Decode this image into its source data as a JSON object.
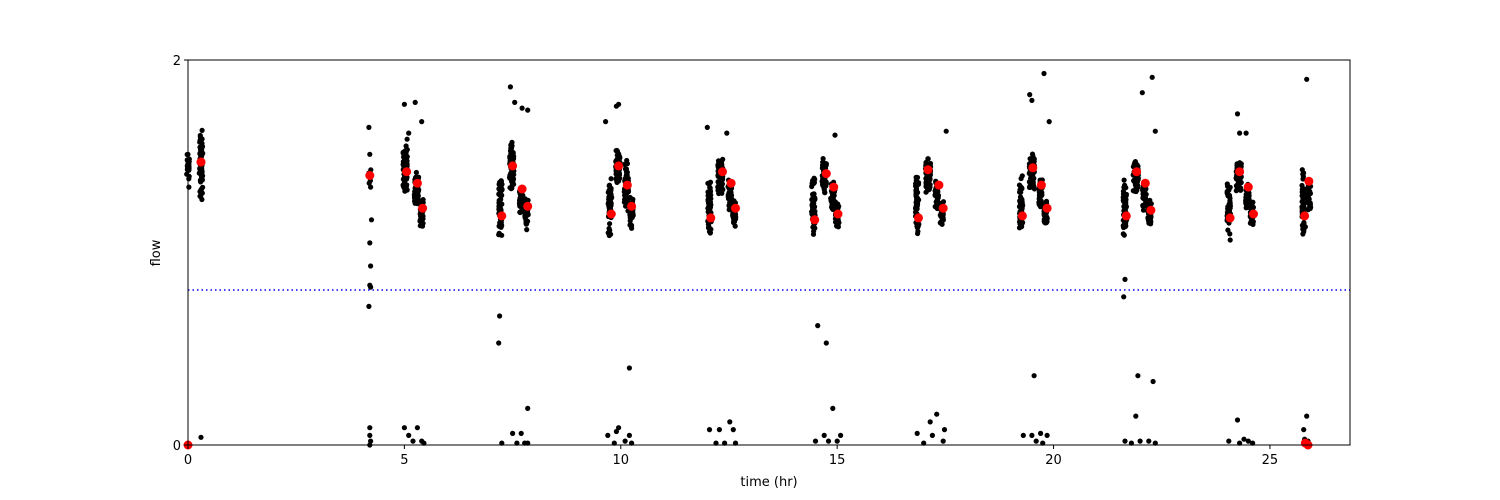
{
  "chart_data": {
    "type": "scatter",
    "xlabel": "time (hr)",
    "ylabel": "flow",
    "xlim": [
      0,
      26.85
    ],
    "ylim": [
      0,
      2
    ],
    "xticks": [
      "0",
      "5",
      "10",
      "15",
      "20",
      "25"
    ],
    "xtick_values": [
      0,
      5,
      10,
      15,
      20,
      25
    ],
    "yticks": [
      "0",
      "2"
    ],
    "ytick_values": [
      0,
      2
    ],
    "grid": false,
    "threshold_line": {
      "y": 0.805,
      "style": "dotted",
      "color": "#0000ff"
    },
    "colors": {
      "raw": "#000000",
      "summary": "#ff0000"
    },
    "raw_clusters": [
      {
        "x": 0.0,
        "width": 0.06,
        "ymin": 1.35,
        "ymax": 1.55,
        "count": 22
      },
      {
        "x": 0.3,
        "width": 0.08,
        "ymin": 1.24,
        "ymax": 1.68,
        "count": 70
      },
      {
        "x": 4.2,
        "width": 0.05,
        "ymin": 1.35,
        "ymax": 1.45,
        "count": 14
      },
      {
        "x": 5.02,
        "width": 0.1,
        "ymin": 1.3,
        "ymax": 1.6,
        "count": 60
      },
      {
        "x": 5.28,
        "width": 0.1,
        "ymin": 1.22,
        "ymax": 1.42,
        "count": 50
      },
      {
        "x": 5.4,
        "width": 0.08,
        "ymin": 1.12,
        "ymax": 1.3,
        "count": 40
      },
      {
        "x": 7.22,
        "width": 0.08,
        "ymin": 1.08,
        "ymax": 1.4,
        "count": 55
      },
      {
        "x": 7.48,
        "width": 0.1,
        "ymin": 1.3,
        "ymax": 1.6,
        "count": 70
      },
      {
        "x": 7.7,
        "width": 0.08,
        "ymin": 1.2,
        "ymax": 1.35,
        "count": 40
      },
      {
        "x": 7.82,
        "width": 0.08,
        "ymin": 1.1,
        "ymax": 1.3,
        "count": 35
      },
      {
        "x": 9.75,
        "width": 0.08,
        "ymin": 1.07,
        "ymax": 1.4,
        "count": 55
      },
      {
        "x": 9.93,
        "width": 0.1,
        "ymin": 1.35,
        "ymax": 1.55,
        "count": 55
      },
      {
        "x": 10.13,
        "width": 0.1,
        "ymin": 1.2,
        "ymax": 1.5,
        "count": 50
      },
      {
        "x": 10.25,
        "width": 0.08,
        "ymin": 1.12,
        "ymax": 1.3,
        "count": 35
      },
      {
        "x": 12.05,
        "width": 0.08,
        "ymin": 1.07,
        "ymax": 1.4,
        "count": 55
      },
      {
        "x": 12.3,
        "width": 0.12,
        "ymin": 1.3,
        "ymax": 1.5,
        "count": 70
      },
      {
        "x": 12.52,
        "width": 0.08,
        "ymin": 1.2,
        "ymax": 1.38,
        "count": 40
      },
      {
        "x": 12.62,
        "width": 0.08,
        "ymin": 1.12,
        "ymax": 1.28,
        "count": 35
      },
      {
        "x": 14.45,
        "width": 0.08,
        "ymin": 1.06,
        "ymax": 1.4,
        "count": 55
      },
      {
        "x": 14.7,
        "width": 0.1,
        "ymin": 1.3,
        "ymax": 1.5,
        "count": 60
      },
      {
        "x": 14.9,
        "width": 0.1,
        "ymin": 1.2,
        "ymax": 1.38,
        "count": 40
      },
      {
        "x": 15.0,
        "width": 0.08,
        "ymin": 1.12,
        "ymax": 1.28,
        "count": 35
      },
      {
        "x": 16.85,
        "width": 0.08,
        "ymin": 1.06,
        "ymax": 1.42,
        "count": 55
      },
      {
        "x": 17.1,
        "width": 0.12,
        "ymin": 1.3,
        "ymax": 1.5,
        "count": 65
      },
      {
        "x": 17.3,
        "width": 0.08,
        "ymin": 1.22,
        "ymax": 1.38,
        "count": 40
      },
      {
        "x": 17.42,
        "width": 0.08,
        "ymin": 1.12,
        "ymax": 1.28,
        "count": 35
      },
      {
        "x": 19.25,
        "width": 0.08,
        "ymin": 1.08,
        "ymax": 1.42,
        "count": 55
      },
      {
        "x": 19.5,
        "width": 0.12,
        "ymin": 1.32,
        "ymax": 1.52,
        "count": 65
      },
      {
        "x": 19.7,
        "width": 0.08,
        "ymin": 1.22,
        "ymax": 1.4,
        "count": 40
      },
      {
        "x": 19.82,
        "width": 0.08,
        "ymin": 1.12,
        "ymax": 1.28,
        "count": 35
      },
      {
        "x": 21.65,
        "width": 0.08,
        "ymin": 1.06,
        "ymax": 1.4,
        "count": 55
      },
      {
        "x": 21.9,
        "width": 0.12,
        "ymin": 1.3,
        "ymax": 1.5,
        "count": 65
      },
      {
        "x": 22.1,
        "width": 0.08,
        "ymin": 1.2,
        "ymax": 1.38,
        "count": 40
      },
      {
        "x": 22.22,
        "width": 0.08,
        "ymin": 1.12,
        "ymax": 1.28,
        "count": 35
      },
      {
        "x": 24.05,
        "width": 0.08,
        "ymin": 1.05,
        "ymax": 1.4,
        "count": 55
      },
      {
        "x": 24.28,
        "width": 0.12,
        "ymin": 1.3,
        "ymax": 1.5,
        "count": 65
      },
      {
        "x": 24.48,
        "width": 0.08,
        "ymin": 1.2,
        "ymax": 1.38,
        "count": 40
      },
      {
        "x": 24.58,
        "width": 0.08,
        "ymin": 1.12,
        "ymax": 1.28,
        "count": 30
      },
      {
        "x": 25.78,
        "width": 0.08,
        "ymin": 1.06,
        "ymax": 1.45,
        "count": 50
      },
      {
        "x": 25.9,
        "width": 0.08,
        "ymin": 1.2,
        "ymax": 1.42,
        "count": 30
      }
    ],
    "raw_points": [
      [
        0.0,
        1.51
      ],
      [
        0.02,
        1.34
      ],
      [
        0.3,
        0.04
      ],
      [
        0.0,
        0.0
      ],
      [
        4.18,
        1.65
      ],
      [
        4.2,
        1.51
      ],
      [
        4.22,
        1.34
      ],
      [
        4.24,
        1.17
      ],
      [
        4.2,
        1.05
      ],
      [
        4.22,
        0.93
      ],
      [
        4.2,
        0.83
      ],
      [
        4.22,
        0.82
      ],
      [
        4.18,
        0.72
      ],
      [
        4.2,
        0.09
      ],
      [
        4.2,
        0.05
      ],
      [
        4.22,
        0.02
      ],
      [
        4.2,
        0.0
      ],
      [
        5.0,
        1.77
      ],
      [
        5.1,
        1.62
      ],
      [
        5.25,
        1.78
      ],
      [
        5.4,
        1.68
      ],
      [
        5.0,
        0.09
      ],
      [
        5.1,
        0.05
      ],
      [
        5.3,
        0.09
      ],
      [
        5.2,
        0.02
      ],
      [
        5.4,
        0.02
      ],
      [
        5.45,
        0.01
      ],
      [
        7.45,
        1.86
      ],
      [
        7.55,
        1.78
      ],
      [
        7.72,
        1.75
      ],
      [
        7.85,
        1.74
      ],
      [
        7.2,
        0.67
      ],
      [
        7.18,
        0.53
      ],
      [
        7.25,
        0.01
      ],
      [
        7.5,
        0.06
      ],
      [
        7.6,
        0.01
      ],
      [
        7.7,
        0.06
      ],
      [
        7.85,
        0.19
      ],
      [
        7.85,
        0.01
      ],
      [
        7.78,
        0.01
      ],
      [
        9.65,
        1.68
      ],
      [
        9.9,
        1.76
      ],
      [
        9.95,
        1.77
      ],
      [
        10.2,
        0.4
      ],
      [
        9.7,
        0.05
      ],
      [
        9.9,
        0.07
      ],
      [
        9.95,
        0.09
      ],
      [
        10.1,
        0.02
      ],
      [
        10.2,
        0.05
      ],
      [
        9.85,
        0.01
      ],
      [
        10.25,
        0.01
      ],
      [
        12.0,
        1.65
      ],
      [
        12.45,
        1.62
      ],
      [
        12.05,
        0.08
      ],
      [
        12.28,
        0.08
      ],
      [
        12.52,
        0.12
      ],
      [
        12.6,
        0.08
      ],
      [
        12.2,
        0.01
      ],
      [
        12.4,
        0.01
      ],
      [
        12.65,
        0.01
      ],
      [
        14.95,
        1.61
      ],
      [
        14.55,
        0.62
      ],
      [
        14.75,
        0.53
      ],
      [
        14.5,
        0.02
      ],
      [
        14.7,
        0.05
      ],
      [
        14.9,
        0.19
      ],
      [
        14.8,
        0.02
      ],
      [
        15.0,
        0.02
      ],
      [
        15.08,
        0.05
      ],
      [
        17.52,
        1.63
      ],
      [
        16.85,
        0.06
      ],
      [
        17.15,
        0.12
      ],
      [
        17.3,
        0.16
      ],
      [
        17.48,
        0.08
      ],
      [
        17.0,
        0.01
      ],
      [
        17.2,
        0.05
      ],
      [
        17.45,
        0.02
      ],
      [
        19.45,
        1.82
      ],
      [
        19.5,
        1.79
      ],
      [
        19.78,
        1.93
      ],
      [
        19.9,
        1.68
      ],
      [
        19.55,
        0.36
      ],
      [
        19.3,
        0.05
      ],
      [
        19.5,
        0.05
      ],
      [
        19.7,
        0.06
      ],
      [
        19.85,
        0.05
      ],
      [
        19.6,
        0.02
      ],
      [
        19.75,
        0.01
      ],
      [
        22.05,
        1.83
      ],
      [
        22.28,
        1.91
      ],
      [
        22.35,
        1.63
      ],
      [
        21.65,
        0.86
      ],
      [
        21.62,
        0.77
      ],
      [
        21.95,
        0.36
      ],
      [
        22.3,
        0.33
      ],
      [
        21.9,
        0.15
      ],
      [
        21.65,
        0.02
      ],
      [
        22.0,
        0.02
      ],
      [
        22.2,
        0.02
      ],
      [
        22.35,
        0.01
      ],
      [
        21.8,
        0.01
      ],
      [
        24.25,
        1.72
      ],
      [
        24.3,
        1.62
      ],
      [
        24.45,
        1.62
      ],
      [
        24.25,
        0.13
      ],
      [
        24.05,
        0.02
      ],
      [
        24.4,
        0.03
      ],
      [
        24.5,
        0.02
      ],
      [
        24.6,
        0.01
      ],
      [
        24.3,
        0.01
      ],
      [
        25.85,
        1.9
      ],
      [
        25.85,
        0.15
      ],
      [
        25.78,
        0.08
      ],
      [
        25.8,
        0.03
      ],
      [
        25.88,
        0.02
      ],
      [
        25.82,
        0.01
      ],
      [
        25.9,
        0.0
      ]
    ],
    "summary_points": [
      [
        0.0,
        0.0
      ],
      [
        0.3,
        1.47
      ],
      [
        4.2,
        1.4
      ],
      [
        5.05,
        1.42
      ],
      [
        5.3,
        1.36
      ],
      [
        5.42,
        1.23
      ],
      [
        7.25,
        1.19
      ],
      [
        7.5,
        1.45
      ],
      [
        7.72,
        1.33
      ],
      [
        7.85,
        1.24
      ],
      [
        9.78,
        1.2
      ],
      [
        9.95,
        1.45
      ],
      [
        10.15,
        1.35
      ],
      [
        10.25,
        1.24
      ],
      [
        12.08,
        1.18
      ],
      [
        12.35,
        1.42
      ],
      [
        12.55,
        1.36
      ],
      [
        12.65,
        1.23
      ],
      [
        14.48,
        1.17
      ],
      [
        14.75,
        1.41
      ],
      [
        14.92,
        1.34
      ],
      [
        15.02,
        1.2
      ],
      [
        16.88,
        1.18
      ],
      [
        17.1,
        1.43
      ],
      [
        17.35,
        1.35
      ],
      [
        17.45,
        1.23
      ],
      [
        19.28,
        1.19
      ],
      [
        19.52,
        1.44
      ],
      [
        19.72,
        1.35
      ],
      [
        19.85,
        1.23
      ],
      [
        21.68,
        1.19
      ],
      [
        21.92,
        1.42
      ],
      [
        22.12,
        1.36
      ],
      [
        22.25,
        1.22
      ],
      [
        24.08,
        1.18
      ],
      [
        24.3,
        1.42
      ],
      [
        24.5,
        1.34
      ],
      [
        24.62,
        1.2
      ],
      [
        25.8,
        1.19
      ],
      [
        25.9,
        1.37
      ],
      [
        25.82,
        0.01
      ],
      [
        25.88,
        0.0
      ]
    ]
  }
}
